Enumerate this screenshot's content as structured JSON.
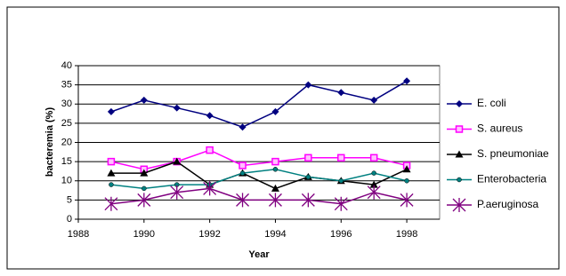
{
  "chart_data": {
    "type": "line",
    "x": [
      1989,
      1990,
      1991,
      1992,
      1993,
      1994,
      1995,
      1996,
      1997,
      1998
    ],
    "x_label": "Year",
    "y_label": "bacteremia (%)",
    "xlim": [
      1988,
      1999
    ],
    "xticks": [
      1988,
      1990,
      1992,
      1994,
      1996,
      1998
    ],
    "ylim": [
      0,
      40
    ],
    "yticks": [
      0,
      5,
      10,
      15,
      20,
      25,
      30,
      35,
      40
    ],
    "grid": true,
    "legend": "right",
    "series": [
      {
        "name": "E. coli",
        "color": "#000080",
        "marker": "diamond",
        "values": [
          28,
          31,
          29,
          27,
          24,
          28,
          35,
          33,
          31,
          36
        ]
      },
      {
        "name": "S. aureus",
        "color": "#ff00ff",
        "marker": "square",
        "values": [
          15,
          13,
          15,
          18,
          14,
          15,
          16,
          16,
          16,
          14
        ]
      },
      {
        "name": "S. pneumoniae",
        "color": "#000000",
        "marker": "triangle",
        "values": [
          12,
          12,
          15,
          9,
          12,
          8,
          11,
          10,
          9,
          13
        ]
      },
      {
        "name": "Enterobacteria",
        "color": "#008080",
        "marker": "circle",
        "values": [
          9,
          8,
          9,
          9,
          12,
          13,
          11,
          10,
          12,
          10
        ]
      },
      {
        "name": "P.aeruginosa",
        "color": "#800080",
        "marker": "asterisk",
        "values": [
          4,
          5,
          7,
          8,
          5,
          5,
          5,
          4,
          7,
          5
        ]
      }
    ]
  }
}
